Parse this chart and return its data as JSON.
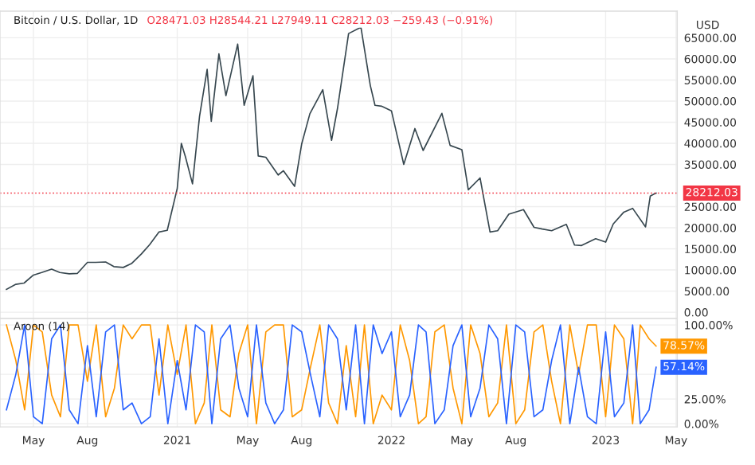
{
  "chart_data": [
    {
      "type": "line",
      "title": "Bitcoin / U.S. Dollar, 1D",
      "subtitle": "O28471.03 H28544.21 L27949.11 C28212.03 −259.43 (−0.91%)",
      "ylabel": "USD",
      "series": [
        {
          "color": "#37474f",
          "x": [
            "2020-03-16",
            "2020-04-01",
            "2020-04-15",
            "2020-05-01",
            "2020-05-15",
            "2020-06-01",
            "2020-06-15",
            "2020-07-01",
            "2020-07-15",
            "2020-08-01",
            "2020-08-15",
            "2020-09-01",
            "2020-09-15",
            "2020-10-01",
            "2020-10-15",
            "2020-11-01",
            "2020-11-15",
            "2020-12-01",
            "2020-12-15",
            "2021-01-01",
            "2021-01-08",
            "2021-01-15",
            "2021-01-27",
            "2021-02-08",
            "2021-02-21",
            "2021-02-28",
            "2021-03-13",
            "2021-03-25",
            "2021-04-14",
            "2021-04-25",
            "2021-05-10",
            "2021-05-19",
            "2021-06-01",
            "2021-06-22",
            "2021-07-01",
            "2021-07-20",
            "2021-08-01",
            "2021-08-15",
            "2021-09-06",
            "2021-09-21",
            "2021-10-01",
            "2021-10-20",
            "2021-11-10",
            "2021-11-26",
            "2021-12-04",
            "2021-12-15",
            "2022-01-01",
            "2022-01-22",
            "2022-02-10",
            "2022-02-24",
            "2022-03-28",
            "2022-04-11",
            "2022-05-01",
            "2022-05-12",
            "2022-06-01",
            "2022-06-18",
            "2022-07-01",
            "2022-07-20",
            "2022-08-14",
            "2022-09-01",
            "2022-09-15",
            "2022-10-01",
            "2022-10-26",
            "2022-11-09",
            "2022-11-21",
            "2022-12-15",
            "2023-01-01",
            "2023-01-14",
            "2023-02-01",
            "2023-02-16",
            "2023-03-10",
            "2023-03-18",
            "2023-03-25",
            "2023-03-28"
          ],
          "values": [
            5400,
            6600,
            6900,
            8800,
            9400,
            10200,
            9400,
            9100,
            9200,
            11800,
            11800,
            11900,
            10800,
            10600,
            11500,
            13800,
            16000,
            19000,
            19400,
            29300,
            40000,
            36800,
            30400,
            46400,
            57500,
            45200,
            61200,
            51300,
            63500,
            49000,
            56000,
            37000,
            36700,
            32500,
            33500,
            29800,
            39800,
            47000,
            52700,
            40700,
            48200,
            66000,
            67500,
            53700,
            49000,
            48800,
            47700,
            35000,
            43500,
            38300,
            47100,
            39500,
            38500,
            29000,
            31800,
            19000,
            19300,
            23200,
            24300,
            20100,
            19700,
            19300,
            20800,
            15900,
            15800,
            17400,
            16600,
            20900,
            23700,
            24600,
            20200,
            27500,
            28000,
            28200
          ]
        }
      ],
      "xlim": [
        "2020-03-05",
        "2023-05-03"
      ],
      "ylim": [
        -1500,
        71300
      ],
      "yticks": [
        {
          "value": 0,
          "label": "0.00"
        },
        {
          "value": 5000,
          "label": "5000.00"
        },
        {
          "value": 10000,
          "label": "10000.00"
        },
        {
          "value": 15000,
          "label": "15000.00"
        },
        {
          "value": 20000,
          "label": "20000.00"
        },
        {
          "value": 25000,
          "label": "25000.00"
        },
        {
          "value": 35000,
          "label": "35000.00"
        },
        {
          "value": 40000,
          "label": "40000.00"
        },
        {
          "value": 45000,
          "label": "45000.00"
        },
        {
          "value": 50000,
          "label": "50000.00"
        },
        {
          "value": 55000,
          "label": "55000.00"
        },
        {
          "value": 60000,
          "label": "60000.00"
        },
        {
          "value": 65000,
          "label": "65000.00"
        }
      ],
      "xticks": [
        {
          "value": "2020-05-01",
          "label": null
        },
        {
          "value": "2020-08-01",
          "label": null
        },
        {
          "value": "2021-01-01",
          "label": null
        },
        {
          "value": "2021-05-01",
          "label": null
        },
        {
          "value": "2021-08-01",
          "label": null
        },
        {
          "value": "2022-01-01",
          "label": null
        },
        {
          "value": "2022-05-01",
          "label": null
        },
        {
          "value": "2022-08-01",
          "label": null
        },
        {
          "value": "2023-01-01",
          "label": null
        },
        {
          "value": "2023-05-01",
          "label": null
        }
      ],
      "ref_lines": [
        {
          "axis": "y",
          "value": 28212.03,
          "label": "28212.03",
          "color": "#f23645",
          "line_style": "dotted"
        }
      ],
      "grid": true,
      "tick_labels": "y"
    },
    {
      "type": "line",
      "title": "Aroon (14)",
      "x": [
        "2020-03-16",
        "2020-04-01",
        "2020-04-16",
        "2020-05-01",
        "2020-05-16",
        "2020-06-01",
        "2020-06-16",
        "2020-07-01",
        "2020-07-16",
        "2020-08-01",
        "2020-08-16",
        "2020-09-01",
        "2020-09-16",
        "2020-10-01",
        "2020-10-16",
        "2020-11-01",
        "2020-11-16",
        "2020-12-01",
        "2020-12-16",
        "2021-01-01",
        "2021-01-16",
        "2021-02-01",
        "2021-02-16",
        "2021-03-01",
        "2021-03-16",
        "2021-04-01",
        "2021-04-16",
        "2021-05-01",
        "2021-05-16",
        "2021-06-01",
        "2021-06-16",
        "2021-07-01",
        "2021-07-16",
        "2021-08-01",
        "2021-08-16",
        "2021-09-01",
        "2021-09-16",
        "2021-10-01",
        "2021-10-16",
        "2021-11-01",
        "2021-11-16",
        "2021-12-01",
        "2021-12-16",
        "2022-01-01",
        "2022-01-16",
        "2022-02-01",
        "2022-02-16",
        "2022-03-01",
        "2022-03-16",
        "2022-04-01",
        "2022-04-16",
        "2022-05-01",
        "2022-05-16",
        "2022-06-01",
        "2022-06-16",
        "2022-07-01",
        "2022-07-16",
        "2022-08-01",
        "2022-08-16",
        "2022-09-01",
        "2022-09-16",
        "2022-10-01",
        "2022-10-16",
        "2022-11-01",
        "2022-11-16",
        "2022-12-01",
        "2022-12-16",
        "2023-01-01",
        "2023-01-16",
        "2023-02-01",
        "2023-02-16",
        "2023-03-01",
        "2023-03-16",
        "2023-03-28"
      ],
      "series": [
        {
          "color": "#ff9800",
          "values": [
            100,
            64,
            14,
            100,
            93,
            29,
            7,
            100,
            100,
            43,
            100,
            7,
            36,
            100,
            86,
            100,
            100,
            29,
            100,
            50,
            100,
            0,
            21,
            100,
            14,
            7,
            71,
            100,
            0,
            93,
            100,
            100,
            7,
            14,
            57,
            100,
            21,
            0,
            79,
            7,
            100,
            0,
            29,
            14,
            100,
            64,
            0,
            7,
            93,
            100,
            36,
            0,
            100,
            71,
            7,
            21,
            100,
            0,
            14,
            93,
            100,
            43,
            0,
            100,
            50,
            100,
            100,
            7,
            100,
            86,
            0,
            100,
            86,
            78.57
          ],
          "value_labels": [
            null,
            null,
            null,
            null,
            null,
            null,
            null,
            null,
            null,
            null,
            null,
            null,
            null,
            null,
            null,
            null,
            null,
            null,
            null,
            null,
            null,
            null,
            null,
            null,
            null,
            null,
            null,
            null,
            null,
            null,
            null,
            null,
            null,
            null,
            null,
            null,
            null,
            null,
            null,
            null,
            null,
            null,
            null,
            null,
            null,
            null,
            null,
            null,
            null,
            null,
            null,
            null,
            null,
            null,
            null,
            null,
            null,
            null,
            null,
            null,
            null,
            null,
            null,
            null,
            null,
            null,
            null,
            null,
            null,
            null,
            null,
            null,
            null,
            "78.57%"
          ]
        },
        {
          "color": "#2962ff",
          "values": [
            14,
            50,
            100,
            7,
            0,
            86,
            100,
            14,
            0,
            79,
            7,
            93,
            100,
            14,
            21,
            0,
            7,
            86,
            0,
            64,
            14,
            100,
            93,
            0,
            86,
            100,
            36,
            7,
            100,
            21,
            0,
            14,
            100,
            93,
            50,
            7,
            100,
            86,
            14,
            100,
            0,
            100,
            71,
            93,
            7,
            29,
            100,
            93,
            0,
            14,
            79,
            100,
            7,
            36,
            100,
            86,
            0,
            100,
            93,
            7,
            14,
            64,
            100,
            0,
            57,
            7,
            0,
            93,
            7,
            21,
            100,
            0,
            14,
            57.14
          ],
          "value_labels": [
            null,
            null,
            null,
            null,
            null,
            null,
            null,
            null,
            null,
            null,
            null,
            null,
            null,
            null,
            null,
            null,
            null,
            null,
            null,
            null,
            null,
            null,
            null,
            null,
            null,
            null,
            null,
            null,
            null,
            null,
            null,
            null,
            null,
            null,
            null,
            null,
            null,
            null,
            null,
            null,
            null,
            null,
            null,
            null,
            null,
            null,
            null,
            null,
            null,
            null,
            null,
            null,
            null,
            null,
            null,
            null,
            null,
            null,
            null,
            null,
            null,
            null,
            null,
            null,
            null,
            null,
            null,
            null,
            null,
            null,
            null,
            null,
            null,
            "57.14%"
          ]
        }
      ],
      "xlim": [
        "2020-03-05",
        "2023-05-03"
      ],
      "ylim": [
        -3.2,
        106.5
      ],
      "yticks": [
        {
          "value": 0,
          "label": "0.00%"
        },
        {
          "value": 25,
          "label": "25.00%"
        },
        {
          "value": 50,
          "label": null
        },
        {
          "value": 100,
          "label": "100.00%"
        }
      ],
      "xticks": [
        {
          "value": "2020-05-01",
          "label": "May"
        },
        {
          "value": "2020-08-01",
          "label": "Aug"
        },
        {
          "value": "2021-01-01",
          "label": "2021"
        },
        {
          "value": "2021-05-01",
          "label": "May"
        },
        {
          "value": "2021-08-01",
          "label": "Aug"
        },
        {
          "value": "2022-01-01",
          "label": "2022"
        },
        {
          "value": "2022-05-01",
          "label": "May"
        },
        {
          "value": "2022-08-01",
          "label": "Aug"
        },
        {
          "value": "2023-01-01",
          "label": "2023"
        },
        {
          "value": "2023-05-01",
          "label": "May"
        }
      ],
      "grid": true
    }
  ]
}
